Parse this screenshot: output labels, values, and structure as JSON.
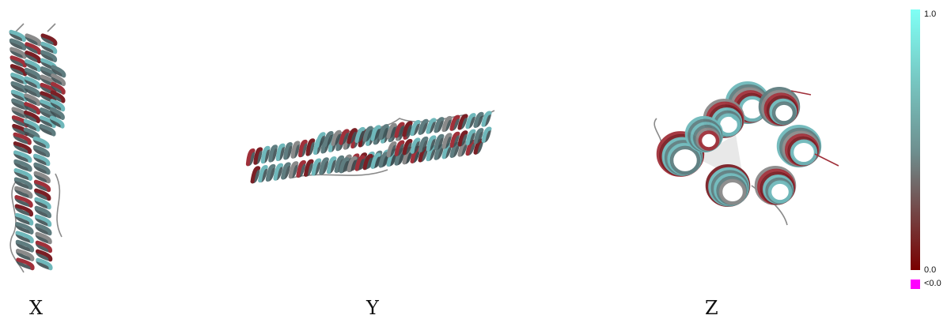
{
  "views": [
    {
      "id": "x",
      "label": "X"
    },
    {
      "id": "y",
      "label": "Y"
    },
    {
      "id": "z",
      "label": "Z"
    }
  ],
  "colorbar": {
    "max_label": "1.0",
    "min_label": "0.0",
    "below_label": "<0.0",
    "color_high": "#7FFFF5",
    "color_mid": "#6e8e8e",
    "color_low": "#7a0000",
    "color_below": "#FF00FF"
  },
  "palette": {
    "cyan": "#6fb8bb",
    "slate": "#5f7d80",
    "grey": "#8a8a8a",
    "red": "#a0303a",
    "darkred": "#7a1f25"
  }
}
